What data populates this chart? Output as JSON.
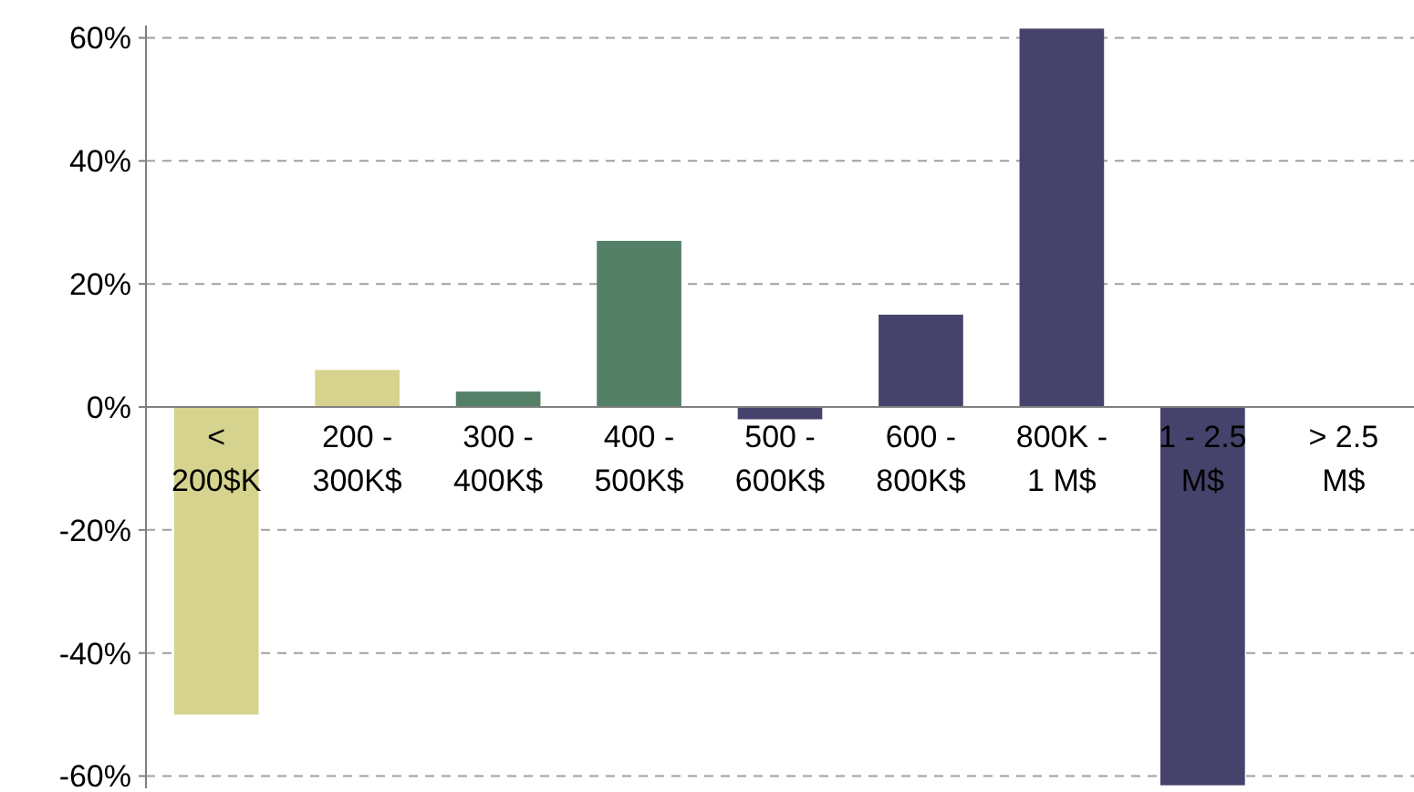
{
  "chart_data": {
    "type": "bar",
    "categories": [
      "<\n200$K",
      "200 -\n300K$",
      "300 -\n400K$",
      "400 -\n500K$",
      "500 -\n600K$",
      "600 -\n800K$",
      "800K -\n1 M$",
      "1 - 2.5\nM$",
      "> 2.5\nM$"
    ],
    "values": [
      -50,
      6,
      2.5,
      27,
      -2,
      15,
      61.5,
      -61.5,
      0
    ],
    "colors": [
      "#d6d38e",
      "#d6d38e",
      "#548068",
      "#548068",
      "#45426b",
      "#45426b",
      "#45426b",
      "#45426b",
      "#45426b"
    ],
    "ylim": [
      -62,
      62
    ],
    "yticks": [
      {
        "value": -60,
        "label": "-60%"
      },
      {
        "value": -40,
        "label": "-40%"
      },
      {
        "value": -20,
        "label": "-20%"
      },
      {
        "value": 0,
        "label": "0%"
      },
      {
        "value": 20,
        "label": "20%"
      },
      {
        "value": 40,
        "label": "40%"
      },
      {
        "value": 60,
        "label": "60%"
      }
    ],
    "grid": "y"
  }
}
